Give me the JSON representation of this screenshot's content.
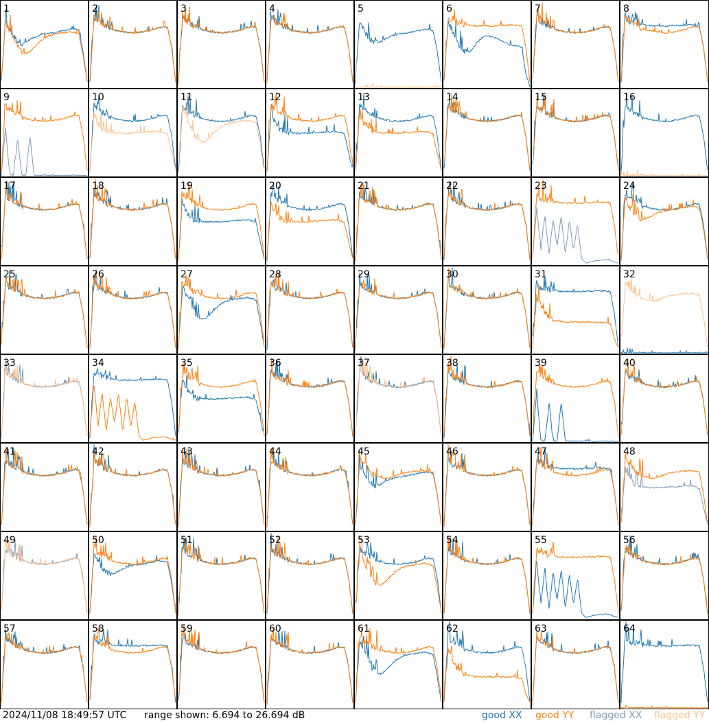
{
  "chart_data": {
    "type": "line",
    "layout": "small-multiples 8x8 tiles, one per antenna",
    "y_unit": "dB",
    "y_range": [
      6.694,
      26.694
    ],
    "grid": false,
    "legend_placement": "bottom-right",
    "series_styles": [
      {
        "key": "goodXX",
        "color": "#1f77b4"
      },
      {
        "key": "goodYY",
        "color": "#ff7f0e"
      },
      {
        "key": "flaggedXX",
        "color": "#7f99b8"
      },
      {
        "key": "flaggedYY",
        "color": "#ffc08f"
      }
    ],
    "shape_points_db": {
      "normal": [
        8,
        23,
        22,
        21.5,
        21,
        20.5,
        20,
        19.8,
        19.6,
        19.5,
        19.4,
        19.4,
        19.5,
        19.6,
        19.8,
        20,
        20.3,
        20.6,
        20.8,
        20.6,
        16,
        8
      ],
      "dip_deep": [
        8,
        22,
        20,
        18,
        16,
        15,
        14.5,
        15,
        16,
        17,
        17.8,
        18.4,
        18.8,
        19,
        19.2,
        19.4,
        19.5,
        19.6,
        19.4,
        19,
        14,
        8
      ],
      "dip_mid": [
        8,
        22,
        20,
        18.5,
        17.5,
        17,
        17.2,
        17.8,
        18.3,
        18.7,
        19,
        19.2,
        19.3,
        19.4,
        19.6,
        19.8,
        20,
        20.2,
        20.2,
        19.8,
        15,
        8
      ],
      "dip_plateau": [
        8,
        22,
        20,
        18,
        16,
        15,
        14.8,
        15.5,
        17,
        18,
        18.5,
        18.6,
        18.4,
        18,
        17.5,
        17,
        16.6,
        16.5,
        16.3,
        16,
        10,
        6.694
      ],
      "lower_flat": [
        8,
        21,
        19,
        17.5,
        17,
        16.8,
        16.7,
        16.6,
        16.6,
        16.6,
        16.6,
        16.7,
        16.8,
        16.8,
        16.9,
        17,
        17,
        17,
        16.8,
        16.4,
        12,
        8
      ],
      "low_flat": [
        8,
        20,
        18,
        16,
        15,
        14.5,
        14.2,
        14,
        13.9,
        13.9,
        13.9,
        13.9,
        13.9,
        13.9,
        13.9,
        13.8,
        13.8,
        13.8,
        13.7,
        13.5,
        10,
        8
      ],
      "upper_flat": [
        8,
        23,
        22,
        21.8,
        21.6,
        21.4,
        21.2,
        21,
        21,
        21,
        21,
        21,
        21,
        21.1,
        21.1,
        21.1,
        21.2,
        21.2,
        21.1,
        21,
        16,
        8
      ],
      "rising": [
        8,
        23,
        22,
        21,
        20,
        19.4,
        19,
        18.8,
        18.8,
        19,
        19.4,
        19.8,
        20,
        20.2,
        20.3,
        20.4,
        20.5,
        20.5,
        20.4,
        20.2,
        15,
        8
      ],
      "spiky_floor": [
        6.8,
        18,
        7,
        6.8,
        15,
        6.8,
        6.8,
        16,
        6.8,
        6.8,
        6.8,
        6.8,
        6.8,
        6.8,
        6.8,
        6.8,
        6.8,
        6.8,
        6.8,
        6.8,
        6.8,
        6.8
      ],
      "dead": [
        6.694,
        6.694,
        6.694,
        6.694,
        6.694,
        6.694,
        6.694,
        6.694,
        6.694,
        6.694,
        6.694,
        6.694,
        6.694,
        6.694,
        6.694,
        6.694,
        6.694,
        6.694,
        6.694,
        6.694,
        6.694,
        6.694
      ],
      "noisy": [
        8,
        20,
        10,
        18,
        9,
        17,
        11,
        18,
        9,
        17,
        10,
        16,
        8,
        7,
        7.2,
        7.5,
        7.6,
        7.7,
        7.8,
        7.6,
        7.2,
        7.0
      ]
    },
    "panels": [
      {
        "label": "1",
        "XX": "dip_mid",
        "YY": "dip_deep"
      },
      {
        "label": "2",
        "XX": "normal",
        "YY": "normal"
      },
      {
        "label": "3",
        "XX": "normal",
        "YY": "normal"
      },
      {
        "label": "4",
        "XX": "normal",
        "YY": "normal"
      },
      {
        "label": "5",
        "XX": "dip_mid",
        "YY": "dead",
        "YYflag": true
      },
      {
        "label": "6",
        "XX": "dip_plateau",
        "YY": "upper_flat"
      },
      {
        "label": "7",
        "XX": "normal",
        "YY": "normal"
      },
      {
        "label": "8",
        "XX": "upper_flat",
        "YY": "normal"
      },
      {
        "label": "9",
        "XX": "spiky_floor",
        "YY": "normal",
        "XXflag": true
      },
      {
        "label": "10",
        "XX": "normal",
        "YY": "lower_flat",
        "YYflag": true
      },
      {
        "label": "11",
        "XX": "normal",
        "YY": "dip_deep",
        "YYflag": true
      },
      {
        "label": "12",
        "XX": "lower_flat",
        "YY": "normal"
      },
      {
        "label": "13",
        "XX": "normal",
        "YY": "lower_flat"
      },
      {
        "label": "14",
        "XX": "normal",
        "YY": "normal"
      },
      {
        "label": "15",
        "XX": "normal",
        "YY": "normal"
      },
      {
        "label": "16",
        "XX": "normal",
        "YY": "dead",
        "YYflag": true
      },
      {
        "label": "17",
        "XX": "normal",
        "YY": "normal"
      },
      {
        "label": "18",
        "XX": "normal",
        "YY": "normal"
      },
      {
        "label": "19",
        "XX": "lower_flat",
        "YY": "normal"
      },
      {
        "label": "20",
        "XX": "normal",
        "YY": "lower_flat"
      },
      {
        "label": "21",
        "XX": "normal",
        "YY": "normal"
      },
      {
        "label": "22",
        "XX": "normal",
        "YY": "normal"
      },
      {
        "label": "23",
        "XX": "noisy",
        "YY": "upper_flat",
        "XXflag": true
      },
      {
        "label": "24",
        "XX": "normal",
        "YY": "dip_mid"
      },
      {
        "label": "25",
        "XX": "normal",
        "YY": "normal"
      },
      {
        "label": "26",
        "XX": "normal",
        "YY": "normal"
      },
      {
        "label": "27",
        "XX": "dip_deep",
        "YY": "normal"
      },
      {
        "label": "28",
        "XX": "normal",
        "YY": "normal"
      },
      {
        "label": "29",
        "XX": "normal",
        "YY": "normal"
      },
      {
        "label": "30",
        "XX": "normal",
        "YY": "normal"
      },
      {
        "label": "31",
        "XX": "upper_flat",
        "YY": "low_flat"
      },
      {
        "label": "32",
        "XX": "dead",
        "YY": "rising",
        "YYflag": true
      },
      {
        "label": "33",
        "XX": "normal",
        "YY": "normal",
        "XXflag": true,
        "YYflag": true
      },
      {
        "label": "34",
        "XX": "upper_flat",
        "YY": "noisy"
      },
      {
        "label": "35",
        "XX": "lower_flat",
        "YY": "normal"
      },
      {
        "label": "36",
        "XX": "normal",
        "YY": "normal"
      },
      {
        "label": "37",
        "XX": "normal",
        "YY": "normal",
        "YYflag": true
      },
      {
        "label": "38",
        "XX": "normal",
        "YY": "normal"
      },
      {
        "label": "39",
        "XX": "spiky_floor",
        "YY": "normal"
      },
      {
        "label": "40",
        "XX": "normal",
        "YY": "normal"
      },
      {
        "label": "41",
        "XX": "normal",
        "YY": "normal"
      },
      {
        "label": "42",
        "XX": "normal",
        "YY": "normal"
      },
      {
        "label": "43",
        "XX": "normal",
        "YY": "normal"
      },
      {
        "label": "44",
        "XX": "normal",
        "YY": "normal"
      },
      {
        "label": "45",
        "XX": "dip_mid",
        "YY": "rising"
      },
      {
        "label": "46",
        "XX": "normal",
        "YY": "normal"
      },
      {
        "label": "47",
        "XX": "upper_flat",
        "YY": "normal"
      },
      {
        "label": "48",
        "XX": "lower_flat",
        "YY": "rising",
        "XXflag": true
      },
      {
        "label": "49",
        "XX": "normal",
        "YY": "normal",
        "XXflag": true,
        "YYflag": true
      },
      {
        "label": "50",
        "XX": "dip_mid",
        "YY": "normal"
      },
      {
        "label": "51",
        "XX": "normal",
        "YY": "normal"
      },
      {
        "label": "52",
        "XX": "normal",
        "YY": "normal"
      },
      {
        "label": "53",
        "XX": "normal",
        "YY": "dip_deep"
      },
      {
        "label": "54",
        "XX": "normal",
        "YY": "normal"
      },
      {
        "label": "55",
        "XX": "noisy",
        "YY": "upper_flat"
      },
      {
        "label": "56",
        "XX": "normal",
        "YY": "normal"
      },
      {
        "label": "57",
        "XX": "normal",
        "YY": "normal"
      },
      {
        "label": "58",
        "XX": "upper_flat",
        "YY": "normal"
      },
      {
        "label": "59",
        "XX": "normal",
        "YY": "normal"
      },
      {
        "label": "60",
        "XX": "normal",
        "YY": "normal"
      },
      {
        "label": "61",
        "XX": "dip_deep",
        "YY": "normal"
      },
      {
        "label": "62",
        "XX": "normal",
        "YY": "low_flat"
      },
      {
        "label": "63",
        "XX": "normal",
        "YY": "normal"
      },
      {
        "label": "64",
        "XX": "upper_flat",
        "YY": "dead"
      }
    ]
  },
  "footer": {
    "timestamp": "2024/11/08 18:49:57 UTC",
    "range_text": "range shown: 6.694 to 26.694 dB"
  },
  "legend": {
    "good_word": "good",
    "flagged_word": "flagged",
    "xx_text": "XX",
    "yy_text": "YY"
  }
}
